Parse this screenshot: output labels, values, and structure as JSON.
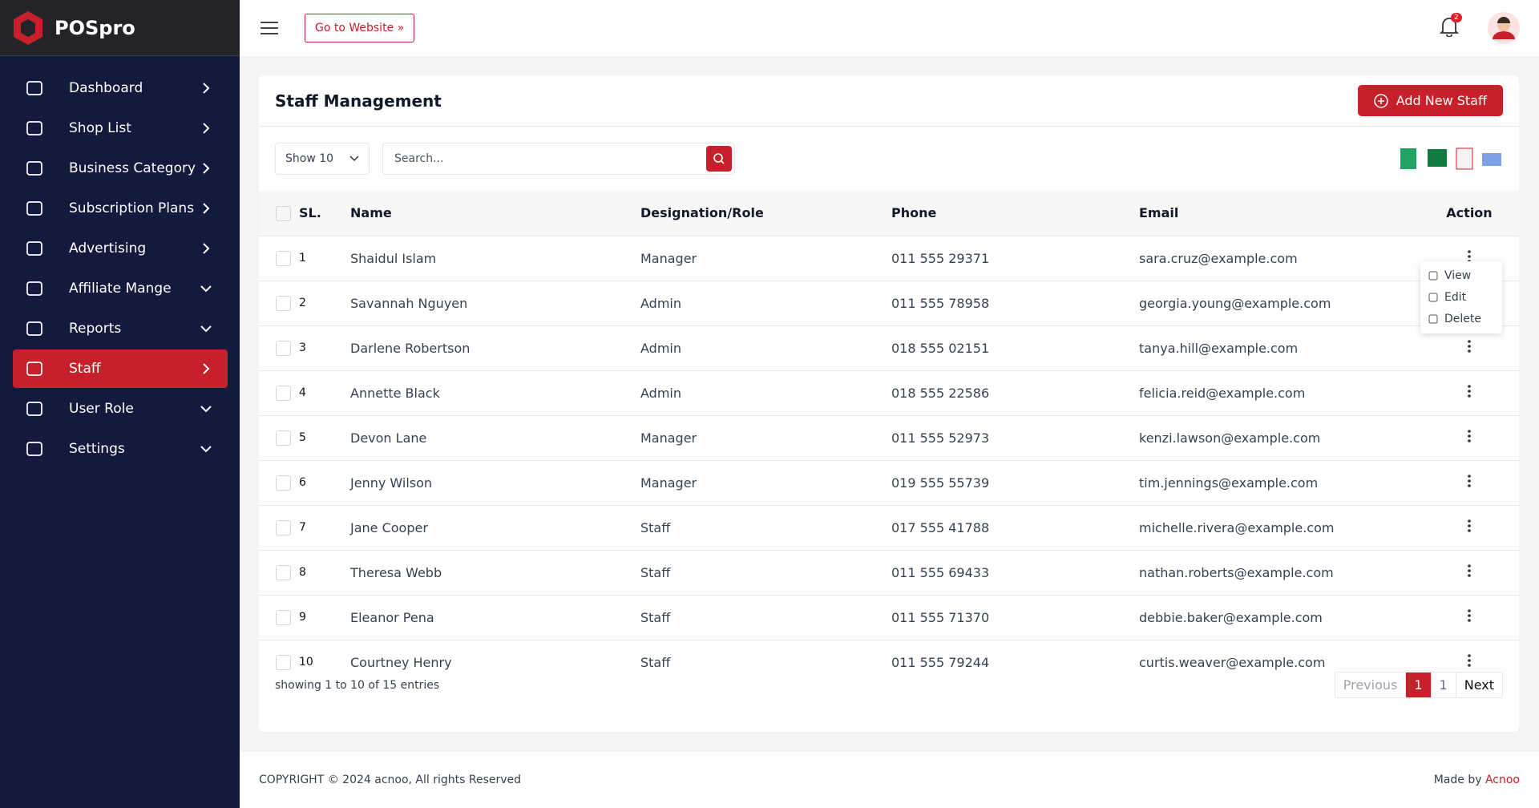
{
  "brand": "POSpro",
  "menu": [
    {
      "label": "Dashboard",
      "chevron": "right"
    },
    {
      "label": "Shop List",
      "chevron": "right"
    },
    {
      "label": "Business Category",
      "chevron": "right"
    },
    {
      "label": "Subscription Plans",
      "chevron": "right"
    },
    {
      "label": "Advertising",
      "chevron": "right"
    },
    {
      "label": "Affiliate Mange",
      "chevron": "down"
    },
    {
      "label": "Reports",
      "chevron": "down"
    },
    {
      "label": "Staff",
      "chevron": "right",
      "active": true
    },
    {
      "label": "User Role",
      "chevron": "down"
    },
    {
      "label": "Settings",
      "chevron": "down"
    }
  ],
  "header": {
    "website_button": "Go to Website",
    "notifications": "2"
  },
  "card": {
    "title": "Staff Management",
    "add_button": "Add New Staff",
    "show": "Show 10",
    "search_placeholder": "Search..."
  },
  "table": {
    "columns": [
      "SL.",
      "Name",
      "Designation/Role",
      "Phone",
      "Email",
      "Action"
    ],
    "rows": [
      [
        "1",
        "Shaidul Islam",
        "Manager",
        "011 555 29371",
        "sara.cruz@example.com"
      ],
      [
        "2",
        "Savannah Nguyen",
        "Admin",
        "011 555 78958",
        "georgia.young@example.com"
      ],
      [
        "3",
        "Darlene Robertson",
        "Admin",
        "018 555 02151",
        "tanya.hill@example.com"
      ],
      [
        "4",
        "Annette Black",
        "Admin",
        "018 555 22586",
        "felicia.reid@example.com"
      ],
      [
        "5",
        "Devon Lane",
        "Manager",
        "011 555 52973",
        "kenzi.lawson@example.com"
      ],
      [
        "6",
        "Jenny Wilson",
        "Manager",
        "019 555 55739",
        "tim.jennings@example.com"
      ],
      [
        "7",
        "Jane Cooper",
        "Staff",
        "017 555 41788",
        "michelle.rivera@example.com"
      ],
      [
        "8",
        "Theresa Webb",
        "Staff",
        "011 555 69433",
        "nathan.roberts@example.com"
      ],
      [
        "9",
        "Eleanor Pena",
        "Staff",
        "011 555 71370",
        "debbie.baker@example.com"
      ],
      [
        "10",
        "Courtney Henry",
        "Staff",
        "011 555 79244",
        "curtis.weaver@example.com"
      ]
    ]
  },
  "action_menu": [
    "View",
    "Edit",
    "Delete"
  ],
  "footer_summary": "showing 1 to 10 of 15 entries",
  "pagination": [
    "Previous",
    "1",
    "1",
    "Next"
  ],
  "footer": {
    "copyright": "COPYRIGHT © 2024 acnoo, All rights Reserved",
    "made_by": "Made by",
    "author": "Acnoo"
  }
}
